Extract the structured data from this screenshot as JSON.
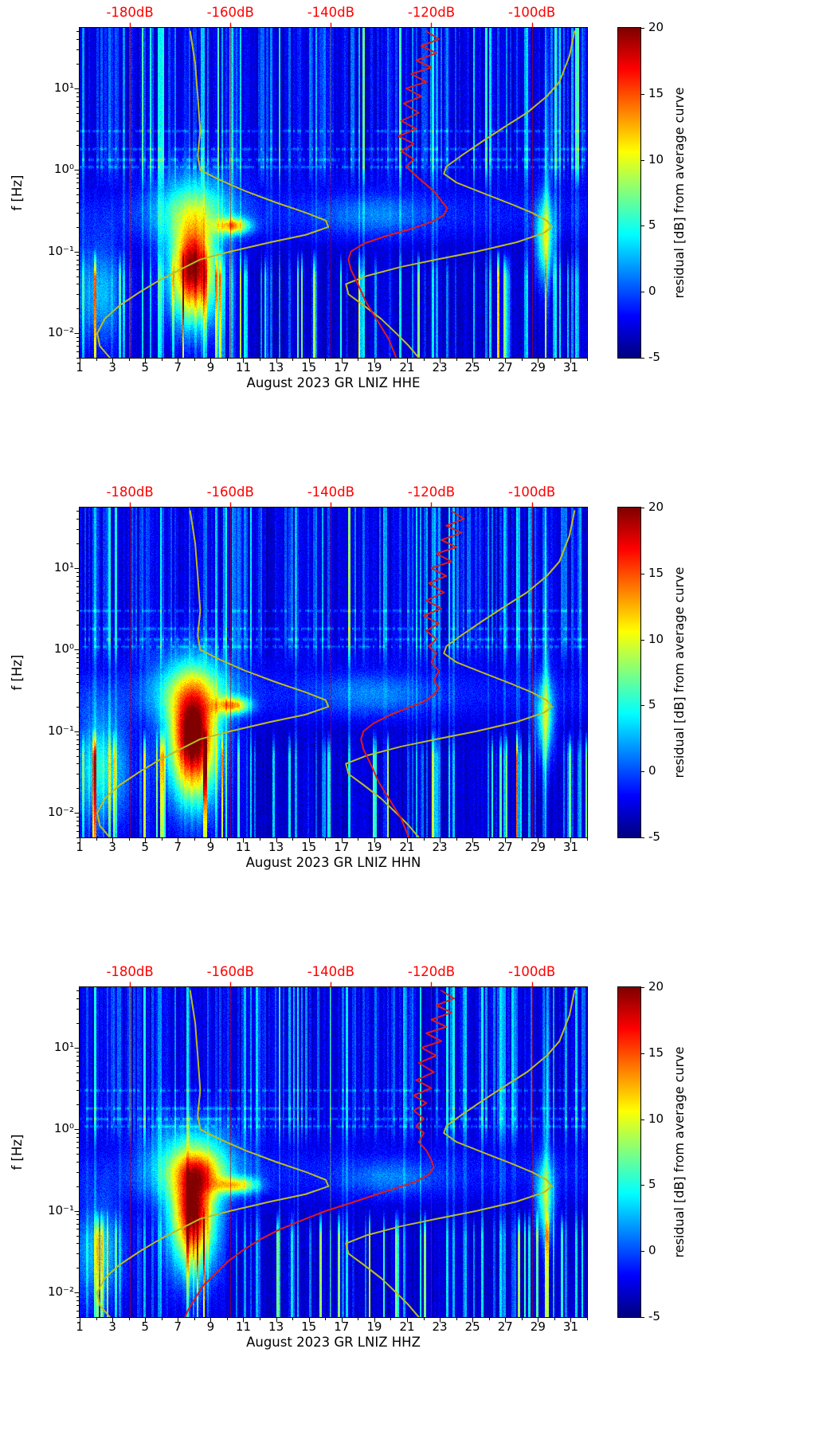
{
  "chart_data": {
    "type": "heatmap",
    "shared": {
      "y_axis_label": "f [Hz]",
      "y_tick_labels": [
        "10⁻²",
        "10⁻¹",
        "10⁰",
        "10¹"
      ],
      "y_tick_values": [
        0.01,
        0.1,
        1,
        10
      ],
      "freq_range_hz": [
        0.005,
        55
      ],
      "x_tick_labels": [
        "1",
        "3",
        "5",
        "7",
        "9",
        "11",
        "13",
        "15",
        "17",
        "19",
        "21",
        "23",
        "25",
        "27",
        "29",
        "31"
      ],
      "x_tick_values": [
        1,
        3,
        5,
        7,
        9,
        11,
        13,
        15,
        17,
        19,
        21,
        23,
        25,
        27,
        29,
        31
      ],
      "x_range_days": [
        1,
        32
      ],
      "top_axis_tick_labels": [
        "-180dB",
        "-160dB",
        "-140dB",
        "-120dB",
        "-100dB"
      ],
      "top_axis_tick_values_db": [
        -180,
        -160,
        -140,
        -120,
        -100
      ],
      "top_axis_range_db": [
        -190,
        -89
      ],
      "colorbar": {
        "label": "residual [dB] from average curve",
        "tick_labels": [
          "20",
          "15",
          "10",
          "5",
          "0",
          "-5"
        ],
        "tick_values": [
          20,
          15,
          10,
          5,
          0,
          -5
        ],
        "value_range": [
          -5,
          20
        ]
      },
      "colors": {
        "top_axis_text": "#ff0000",
        "db_gridline": "#cc0000",
        "model_curve": "#bcbd22",
        "average_curve": "#dd1c1c",
        "frame": "#000000"
      },
      "overlay_curves": {
        "low_noise_model_db": [
          [
            50,
            -168
          ],
          [
            20,
            -167
          ],
          [
            8,
            -166.5
          ],
          [
            3,
            -166
          ],
          [
            1.5,
            -166.5
          ],
          [
            1.0,
            -166
          ],
          [
            0.75,
            -162
          ],
          [
            0.55,
            -157
          ],
          [
            0.4,
            -151
          ],
          [
            0.3,
            -145
          ],
          [
            0.24,
            -141
          ],
          [
            0.2,
            -140.5
          ],
          [
            0.16,
            -145
          ],
          [
            0.13,
            -152
          ],
          [
            0.1,
            -160
          ],
          [
            0.08,
            -166
          ],
          [
            0.06,
            -170
          ],
          [
            0.045,
            -174
          ],
          [
            0.032,
            -178
          ],
          [
            0.022,
            -182
          ],
          [
            0.015,
            -185
          ],
          [
            0.01,
            -186.5
          ],
          [
            0.007,
            -186
          ],
          [
            0.005,
            -184
          ]
        ],
        "high_noise_model_db": [
          [
            50,
            -91.5
          ],
          [
            25,
            -92.5
          ],
          [
            12,
            -94.5
          ],
          [
            8,
            -97
          ],
          [
            5,
            -101
          ],
          [
            3.2,
            -106
          ],
          [
            2.2,
            -110
          ],
          [
            1.5,
            -114
          ],
          [
            1.1,
            -117
          ],
          [
            0.9,
            -117.5
          ],
          [
            0.7,
            -115
          ],
          [
            0.5,
            -109
          ],
          [
            0.38,
            -104
          ],
          [
            0.3,
            -100
          ],
          [
            0.24,
            -97
          ],
          [
            0.2,
            -96
          ],
          [
            0.17,
            -97.5
          ],
          [
            0.13,
            -103
          ],
          [
            0.1,
            -111
          ],
          [
            0.08,
            -119
          ],
          [
            0.065,
            -126
          ],
          [
            0.05,
            -133
          ],
          [
            0.04,
            -137
          ],
          [
            0.03,
            -136.5
          ],
          [
            0.022,
            -133.5
          ],
          [
            0.015,
            -130
          ],
          [
            0.01,
            -127
          ],
          [
            0.007,
            -124.5
          ],
          [
            0.005,
            -122.5
          ]
        ]
      },
      "horizontal_lines_log10f": [
        0.04,
        0.13,
        0.26,
        0.48
      ]
    },
    "panels": [
      {
        "channel": "HHE",
        "title": "August 2023 GR LNIZ  HHE",
        "seed": 11,
        "features": [
          [
            7.9,
            1.05,
            -1.35,
            0.42,
            17
          ],
          [
            7.9,
            0.7,
            -1.1,
            0.25,
            7
          ],
          [
            7.9,
            1.7,
            -0.5,
            0.33,
            9
          ],
          [
            10.4,
            0.7,
            -0.68,
            0.07,
            12
          ],
          [
            2.1,
            1.1,
            -1.5,
            0.45,
            6
          ],
          [
            29.4,
            0.4,
            -0.85,
            0.35,
            10
          ],
          [
            29.5,
            0.12,
            0.0,
            1.3,
            4.5
          ],
          [
            19,
            2.5,
            -0.55,
            0.18,
            3
          ],
          [
            16,
            40,
            -0.52,
            0.3,
            2.2
          ]
        ],
        "average_curve_db": [
          [
            50,
            -121
          ],
          [
            40,
            -118.5
          ],
          [
            33,
            -122
          ],
          [
            27,
            -119
          ],
          [
            22,
            -123
          ],
          [
            18,
            -120
          ],
          [
            15,
            -124
          ],
          [
            12,
            -121
          ],
          [
            10,
            -125
          ],
          [
            8,
            -122
          ],
          [
            6.5,
            -125.5
          ],
          [
            5,
            -122.5
          ],
          [
            4,
            -126
          ],
          [
            3.2,
            -123
          ],
          [
            2.6,
            -126.5
          ],
          [
            2.1,
            -123.5
          ],
          [
            1.7,
            -126
          ],
          [
            1.35,
            -123.5
          ],
          [
            1.1,
            -125
          ],
          [
            0.9,
            -123.5
          ],
          [
            0.7,
            -121.5
          ],
          [
            0.55,
            -119.5
          ],
          [
            0.42,
            -118
          ],
          [
            0.34,
            -116.8
          ],
          [
            0.28,
            -117.5
          ],
          [
            0.23,
            -120
          ],
          [
            0.19,
            -124
          ],
          [
            0.155,
            -129
          ],
          [
            0.125,
            -133.5
          ],
          [
            0.1,
            -136
          ],
          [
            0.08,
            -136.5
          ],
          [
            0.06,
            -136
          ],
          [
            0.045,
            -135
          ],
          [
            0.033,
            -134
          ],
          [
            0.024,
            -133
          ],
          [
            0.017,
            -131.5
          ],
          [
            0.012,
            -130
          ],
          [
            0.0085,
            -128.5
          ],
          [
            0.006,
            -127.5
          ],
          [
            0.005,
            -127
          ]
        ]
      },
      {
        "channel": "HHN",
        "title": "August 2023 GR LNIZ  HHN",
        "seed": 22,
        "features": [
          [
            7.9,
            1.1,
            -1.25,
            0.5,
            18
          ],
          [
            7.9,
            0.8,
            -1.0,
            0.3,
            7
          ],
          [
            7.9,
            1.7,
            -0.5,
            0.33,
            9
          ],
          [
            10.4,
            0.7,
            -0.68,
            0.07,
            12
          ],
          [
            2.3,
            1.2,
            -1.45,
            0.5,
            8
          ],
          [
            29.4,
            0.4,
            -0.85,
            0.35,
            9
          ],
          [
            29.5,
            0.12,
            0.0,
            1.3,
            4
          ],
          [
            19,
            2.5,
            -0.55,
            0.18,
            3
          ],
          [
            16,
            40,
            -0.52,
            0.3,
            2.2
          ]
        ],
        "average_curve_db": [
          [
            50,
            -116
          ],
          [
            40,
            -113.5
          ],
          [
            33,
            -117
          ],
          [
            27,
            -114
          ],
          [
            22,
            -118
          ],
          [
            18,
            -115
          ],
          [
            15,
            -119
          ],
          [
            12,
            -116
          ],
          [
            10,
            -120
          ],
          [
            8,
            -117
          ],
          [
            6.5,
            -120.5
          ],
          [
            5,
            -117.5
          ],
          [
            4,
            -121
          ],
          [
            3.2,
            -118
          ],
          [
            2.6,
            -121.5
          ],
          [
            2.1,
            -118.5
          ],
          [
            1.7,
            -121
          ],
          [
            1.35,
            -119
          ],
          [
            1.1,
            -120.5
          ],
          [
            0.9,
            -119
          ],
          [
            0.7,
            -120
          ],
          [
            0.55,
            -118.5
          ],
          [
            0.42,
            -119.5
          ],
          [
            0.34,
            -118.5
          ],
          [
            0.28,
            -119.5
          ],
          [
            0.23,
            -121.5
          ],
          [
            0.19,
            -125
          ],
          [
            0.155,
            -128.5
          ],
          [
            0.125,
            -131.5
          ],
          [
            0.1,
            -133.5
          ],
          [
            0.08,
            -134
          ],
          [
            0.06,
            -133.5
          ],
          [
            0.045,
            -132.5
          ],
          [
            0.033,
            -131.5
          ],
          [
            0.024,
            -130.5
          ],
          [
            0.017,
            -129
          ],
          [
            0.012,
            -127.5
          ],
          [
            0.0085,
            -126
          ],
          [
            0.006,
            -125
          ],
          [
            0.005,
            -124.5
          ]
        ]
      },
      {
        "channel": "HHZ",
        "title": "August 2023 GR LNIZ  HHZ",
        "seed": 33,
        "features": [
          [
            7.9,
            1.0,
            -1.2,
            0.45,
            16
          ],
          [
            7.9,
            0.7,
            -0.95,
            0.25,
            6
          ],
          [
            7.9,
            1.8,
            -0.45,
            0.35,
            10
          ],
          [
            8.3,
            0.9,
            -0.52,
            0.15,
            5
          ],
          [
            10.6,
            0.9,
            -0.68,
            0.07,
            11
          ],
          [
            2.2,
            1.1,
            -1.5,
            0.45,
            6
          ],
          [
            29.4,
            0.4,
            -0.85,
            0.35,
            9
          ],
          [
            29.5,
            0.12,
            0.0,
            1.3,
            4
          ],
          [
            20,
            2,
            -0.6,
            0.15,
            3
          ],
          [
            16,
            40,
            -0.52,
            0.3,
            2.2
          ]
        ],
        "average_curve_db": [
          [
            50,
            -118
          ],
          [
            40,
            -115.5
          ],
          [
            33,
            -119
          ],
          [
            27,
            -116
          ],
          [
            22,
            -120
          ],
          [
            18,
            -117
          ],
          [
            15,
            -121
          ],
          [
            12,
            -118
          ],
          [
            10,
            -122
          ],
          [
            8,
            -119
          ],
          [
            6.5,
            -122.5
          ],
          [
            5,
            -119.5
          ],
          [
            4,
            -123
          ],
          [
            3.2,
            -120
          ],
          [
            2.6,
            -123.5
          ],
          [
            2.1,
            -121
          ],
          [
            1.7,
            -123.5
          ],
          [
            1.35,
            -121.5
          ],
          [
            1.1,
            -123
          ],
          [
            0.9,
            -121.5
          ],
          [
            0.7,
            -122.5
          ],
          [
            0.55,
            -121
          ],
          [
            0.42,
            -120
          ],
          [
            0.34,
            -119.5
          ],
          [
            0.28,
            -120.5
          ],
          [
            0.23,
            -123
          ],
          [
            0.19,
            -127
          ],
          [
            0.155,
            -131.5
          ],
          [
            0.125,
            -136
          ],
          [
            0.1,
            -141
          ],
          [
            0.08,
            -145
          ],
          [
            0.06,
            -150
          ],
          [
            0.045,
            -154
          ],
          [
            0.033,
            -157.5
          ],
          [
            0.024,
            -160.5
          ],
          [
            0.017,
            -163
          ],
          [
            0.012,
            -165.5
          ],
          [
            0.0085,
            -167
          ],
          [
            0.006,
            -168.5
          ],
          [
            0.005,
            -169
          ]
        ]
      }
    ]
  }
}
